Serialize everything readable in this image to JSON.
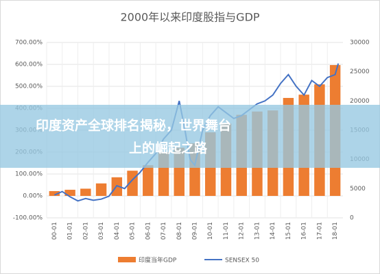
{
  "chart_data": {
    "type": "bar_line",
    "title": "2000年以来印度股指与GDP",
    "categories": [
      "00-01",
      "01-01",
      "02-01",
      "03-01",
      "04-01",
      "05-01",
      "06-01",
      "07-01",
      "08-01",
      "09-01",
      "10-01",
      "11-01",
      "12-01",
      "13-01",
      "14-01",
      "15-01",
      "16-01",
      "17-01",
      "18-01"
    ],
    "series": [
      {
        "name": "印度当年GDP",
        "color": "#ed7d31",
        "axis": "y",
        "values": [
          22,
          28,
          33,
          57,
          85,
          115,
          140,
          200,
          220,
          240,
          290,
          330,
          370,
          385,
          390,
          447,
          462,
          509,
          597
        ]
      },
      {
        "name": "SENSEX 50",
        "color": "#4472c4",
        "axis": "y2",
        "x": [
          0,
          0.5,
          1,
          1.5,
          2,
          2.5,
          3,
          3.5,
          4,
          4.5,
          5,
          5.5,
          6,
          6.5,
          7,
          7.5,
          8,
          8.3,
          8.7,
          9,
          9.5,
          10,
          10.5,
          11,
          11.5,
          12,
          12.5,
          13,
          13.5,
          14,
          14.5,
          15,
          15.5,
          16,
          16.5,
          17,
          17.5,
          18,
          18.2
        ],
        "values": [
          3900,
          4500,
          3600,
          2900,
          3300,
          3000,
          3200,
          3700,
          5500,
          5000,
          6500,
          7800,
          9500,
          11000,
          13500,
          15000,
          20000,
          16000,
          10000,
          9000,
          15000,
          17500,
          19000,
          18000,
          17000,
          17500,
          18500,
          19500,
          20000,
          21000,
          23000,
          24500,
          22500,
          21000,
          23500,
          22500,
          24000,
          24500,
          26400
        ]
      }
    ],
    "ylim": [
      -100,
      700
    ],
    "yticks": [
      {
        "value": -100,
        "label": "-100.00%"
      },
      {
        "value": 0,
        "label": "0.00%"
      },
      {
        "value": 100,
        "label": "100.00%"
      },
      {
        "value": 200,
        "label": "200.00%"
      },
      {
        "value": 300,
        "label": "300.00%"
      },
      {
        "value": 400,
        "label": "400.00%"
      },
      {
        "value": 500,
        "label": "500.00%"
      },
      {
        "value": 600,
        "label": "600.00%"
      },
      {
        "value": 700,
        "label": "700.00%"
      }
    ],
    "y2lim": [
      0,
      30000
    ],
    "y2ticks": [
      0,
      5000,
      10000,
      15000,
      20000,
      25000,
      30000
    ],
    "grid": true,
    "annotation": [
      "印度资产全球排名揭秘，世界舞台",
      "上的崛起之路"
    ]
  }
}
